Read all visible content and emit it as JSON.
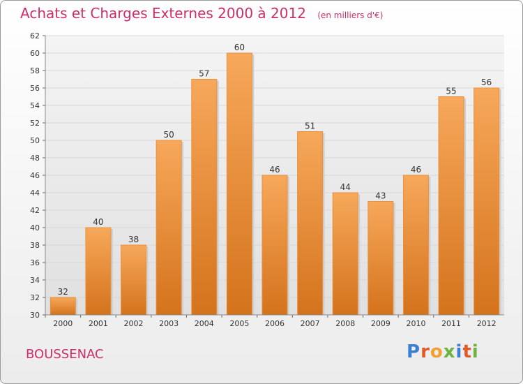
{
  "header": {
    "title": "Achats et Charges Externes 2000 à 2012",
    "subtitle": "(en milliers d'€)"
  },
  "footer": {
    "commune": "BOUSSENAC",
    "logo": "Proxiti"
  },
  "colors": {
    "bar_top": "#f7a85a",
    "bar_bottom": "#d4731c",
    "title": "#cc2e6a",
    "grid": "#d8d8d8"
  },
  "chart_data": {
    "type": "bar",
    "title": "Achats et Charges Externes 2000 à 2012",
    "categories": [
      "2000",
      "2001",
      "2002",
      "2003",
      "2004",
      "2005",
      "2006",
      "2007",
      "2008",
      "2009",
      "2010",
      "2011",
      "2012"
    ],
    "values": [
      32,
      40,
      38,
      50,
      57,
      60,
      46,
      51,
      44,
      43,
      46,
      55,
      56
    ],
    "ylim": [
      30,
      62
    ],
    "yticks": [
      30,
      32,
      34,
      36,
      38,
      40,
      42,
      44,
      46,
      48,
      50,
      52,
      54,
      56,
      58,
      60,
      62
    ],
    "grid": true,
    "xlabel": "",
    "ylabel": ""
  }
}
